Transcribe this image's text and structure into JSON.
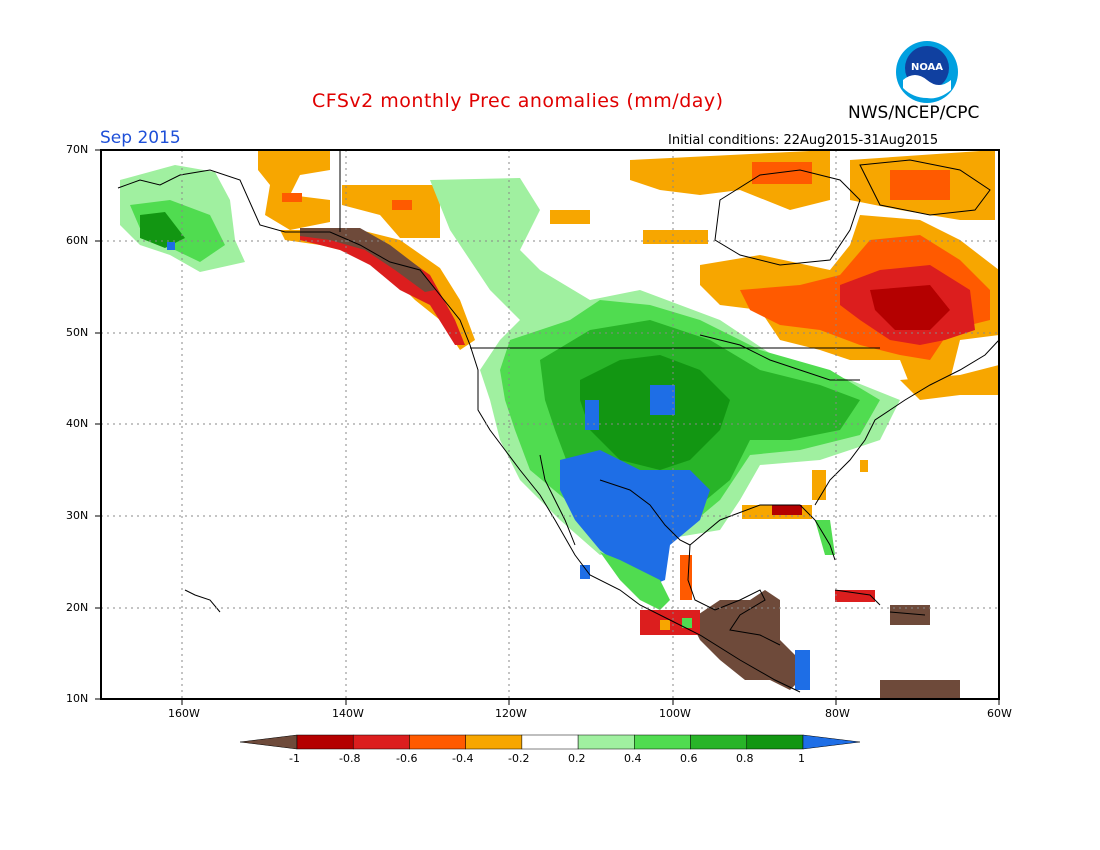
{
  "title": "CFSv2 monthly Prec anomalies (mm/day)",
  "organization": "NWS/NCEP/CPC",
  "logo_text": "NOAA",
  "forecast_month": "Sep 2015",
  "initial_conditions": "Initial conditions: 22Aug2015-31Aug2015",
  "map": {
    "lon_range": [
      -170,
      -60
    ],
    "lat_range": [
      10,
      70
    ],
    "lat_ticks": [
      "70N",
      "60N",
      "50N",
      "40N",
      "30N",
      "20N",
      "10N"
    ],
    "lon_ticks": [
      "160W",
      "140W",
      "120W",
      "100W",
      "80W",
      "60W"
    ],
    "grid": "dotted"
  },
  "colorbar": {
    "labels": [
      "-1",
      "-0.8",
      "-0.6",
      "-0.4",
      "-0.2",
      "0.2",
      "0.4",
      "0.6",
      "0.8",
      "1"
    ],
    "colors": [
      "#6e4a3a",
      "#b40000",
      "#dc1e1e",
      "#ff5a00",
      "#f7a600",
      "#ffffff",
      "#a0f0a0",
      "#50dc50",
      "#28b428",
      "#129612",
      "#1e6ee6"
    ]
  },
  "anomaly_regions": [
    {
      "name": "alaska",
      "color": "#a0f0a0"
    },
    {
      "name": "pacific-northwest-coast",
      "color": "#6e4a3a"
    },
    {
      "name": "canadian-coast",
      "color": "#dc1e1e"
    },
    {
      "name": "north-canada",
      "color": "#f7a600"
    },
    {
      "name": "quebec-labrador",
      "color": "#dc1e1e"
    },
    {
      "name": "central-us",
      "color": "#28b428"
    },
    {
      "name": "southwest-us-mexico",
      "color": "#1e6ee6"
    },
    {
      "name": "central-america",
      "color": "#6e4a3a"
    },
    {
      "name": "caribbean",
      "color": "#6e4a3a"
    },
    {
      "name": "gulf-coast",
      "color": "#dc1e1e"
    },
    {
      "name": "florida",
      "color": "#50dc50"
    }
  ]
}
